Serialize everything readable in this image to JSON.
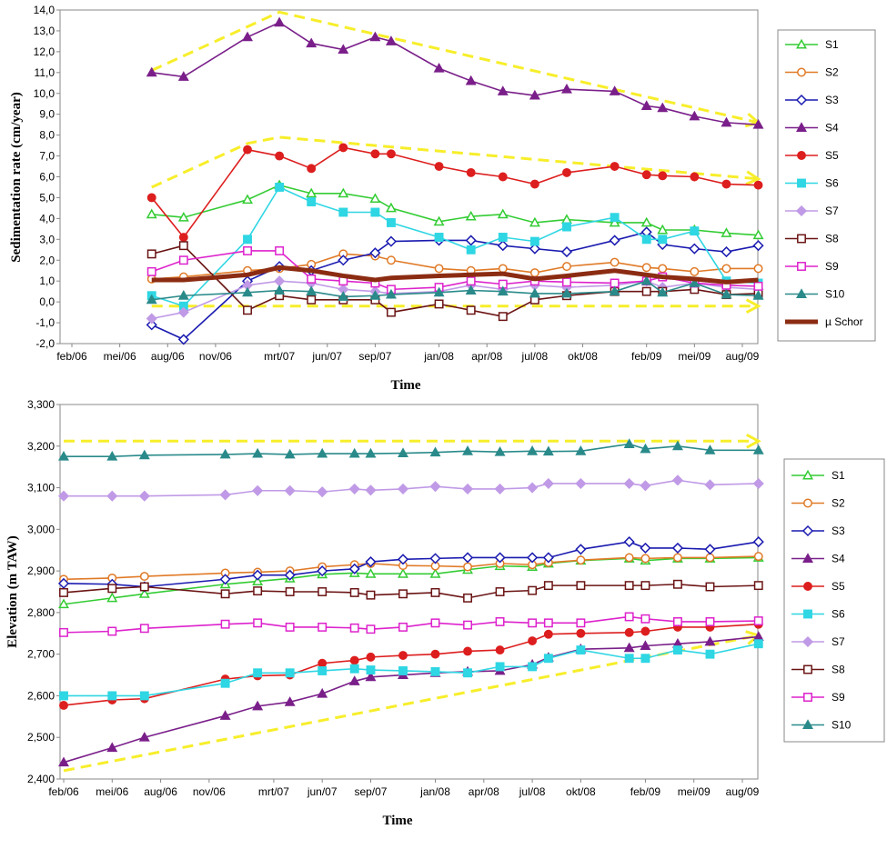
{
  "chart_data": [
    {
      "type": "line",
      "title": "",
      "xlabel": "Time",
      "ylabel": "Sedimentation rate (cm/year)",
      "xticks": [
        "feb/06",
        "mei/06",
        "aug/06",
        "nov/06",
        "mrt/07",
        "jun/07",
        "sep/07",
        "jan/08",
        "apr/08",
        "jul/08",
        "okt/08",
        "feb/09",
        "mei/09",
        "aug/09"
      ],
      "yticks": [
        "-2,0",
        "-1,0",
        "0,0",
        "1,0",
        "2,0",
        "3,0",
        "4,0",
        "5,0",
        "6,0",
        "7,0",
        "8,0",
        "9,0",
        "10,0",
        "11,0",
        "12,0",
        "13,0",
        "14,0"
      ],
      "ylim": [
        -2,
        14
      ],
      "grid": "none",
      "legend_position": "right",
      "x": [
        "jul/06",
        "sep/06",
        "jan/07",
        "mrt/07",
        "mei/07",
        "jul/07",
        "sep/07",
        "okt/07",
        "jan/08",
        "mrt/08",
        "mei/08",
        "jul/08",
        "sep/08",
        "dec/08",
        "feb/09",
        "mrt/09",
        "mei/09",
        "jul/09",
        "sep/09"
      ],
      "series": [
        {
          "name": "S1",
          "color": "#33cc33",
          "marker": "triangle-open",
          "values": [
            4.2,
            4.05,
            4.9,
            5.6,
            5.2,
            5.2,
            4.95,
            4.5,
            3.85,
            4.1,
            4.2,
            3.8,
            3.95,
            3.8,
            3.8,
            3.45,
            3.45,
            3.3,
            3.2
          ]
        },
        {
          "name": "S2",
          "color": "#e07a27",
          "marker": "circle-open",
          "values": [
            1.1,
            1.2,
            1.5,
            1.6,
            1.8,
            2.3,
            2.2,
            2.0,
            1.6,
            1.5,
            1.6,
            1.4,
            1.7,
            1.9,
            1.65,
            1.6,
            1.45,
            1.6,
            1.6
          ]
        },
        {
          "name": "S3",
          "color": "#1a1ab0",
          "marker": "diamond-open",
          "values": [
            -1.1,
            -1.8,
            1.0,
            1.7,
            1.5,
            2.0,
            2.35,
            2.9,
            2.95,
            2.95,
            2.7,
            2.55,
            2.4,
            2.95,
            3.35,
            2.75,
            2.55,
            2.4,
            2.7
          ]
        },
        {
          "name": "S4",
          "color": "#7a1f8a",
          "marker": "triangle-filled",
          "values": [
            11.0,
            10.8,
            12.7,
            13.4,
            12.4,
            12.1,
            12.7,
            12.5,
            11.2,
            10.6,
            10.1,
            9.9,
            10.2,
            10.1,
            9.4,
            9.3,
            8.9,
            8.6,
            8.5
          ]
        },
        {
          "name": "S5",
          "color": "#dd1e1e",
          "marker": "circle-filled",
          "values": [
            5.0,
            3.1,
            7.3,
            7.0,
            6.4,
            7.4,
            7.1,
            7.1,
            6.5,
            6.2,
            6.0,
            5.65,
            6.2,
            6.5,
            6.1,
            6.05,
            6.0,
            5.65,
            5.6
          ]
        },
        {
          "name": "S6",
          "color": "#2fd6e3",
          "marker": "square-filled",
          "values": [
            0.3,
            -0.2,
            3.0,
            5.5,
            4.8,
            4.3,
            4.3,
            3.8,
            3.1,
            2.5,
            3.1,
            2.9,
            3.6,
            4.05,
            3.0,
            3.0,
            3.4,
            1.0,
            0.9
          ]
        },
        {
          "name": "S7",
          "color": "#c09ae6",
          "marker": "diamond-filled",
          "values": [
            -0.8,
            -0.5,
            0.8,
            1.0,
            0.9,
            0.6,
            0.5,
            0.4,
            0.5,
            0.8,
            0.6,
            0.8,
            0.7,
            0.8,
            1.0,
            0.7,
            0.9,
            0.7,
            0.6
          ]
        },
        {
          "name": "S8",
          "color": "#6b1414",
          "marker": "square-open",
          "values": [
            2.3,
            2.7,
            -0.4,
            0.3,
            0.1,
            0.1,
            0.1,
            -0.5,
            -0.1,
            -0.4,
            -0.7,
            0.1,
            0.3,
            0.5,
            0.5,
            0.5,
            0.6,
            0.35,
            0.4
          ]
        },
        {
          "name": "S9",
          "color": "#dd22cc",
          "marker": "square-open",
          "values": [
            1.45,
            2.0,
            2.45,
            2.45,
            1.1,
            1.0,
            0.9,
            0.6,
            0.7,
            1.0,
            0.85,
            1.0,
            0.95,
            0.9,
            1.0,
            1.2,
            0.9,
            0.8,
            0.75
          ]
        },
        {
          "name": "S10",
          "color": "#2a8a8a",
          "marker": "triangle-filled",
          "values": [
            0.1,
            0.3,
            0.45,
            0.55,
            0.5,
            0.25,
            0.3,
            0.35,
            0.45,
            0.55,
            0.5,
            0.4,
            0.4,
            0.5,
            1.0,
            0.45,
            0.9,
            0.35,
            0.3
          ]
        },
        {
          "name": "µ Schor",
          "color": "#8b2c12",
          "marker": "none",
          "thick": true,
          "values": [
            1.05,
            1.05,
            1.3,
            1.65,
            1.5,
            1.25,
            1.05,
            1.15,
            1.25,
            1.3,
            1.35,
            1.1,
            1.25,
            1.5,
            1.3,
            1.2,
            1.1,
            0.95,
            1.05
          ]
        }
      ],
      "annotations": [
        {
          "color": "#f7ee2a",
          "points": [
            [
              "jul/06",
              11.1
            ],
            [
              "mrt/07",
              13.9
            ],
            [
              "sep/09",
              8.6
            ]
          ]
        },
        {
          "color": "#f7ee2a",
          "points": [
            [
              "jul/06",
              5.5
            ],
            [
              "jan/07",
              7.6
            ],
            [
              "mrt/07",
              7.9
            ],
            [
              "sep/09",
              5.9
            ]
          ]
        },
        {
          "color": "#f7ee2a",
          "points": [
            [
              "jul/06",
              -0.2
            ],
            [
              "sep/09",
              -0.2
            ]
          ]
        }
      ]
    },
    {
      "type": "line",
      "title": "",
      "xlabel": "Time",
      "ylabel": "Elevation (m TAW)",
      "xticks": [
        "feb/06",
        "mei/06",
        "aug/06",
        "nov/06",
        "mrt/07",
        "jun/07",
        "sep/07",
        "jan/08",
        "apr/08",
        "jul/08",
        "okt/08",
        "feb/09",
        "mei/09",
        "aug/09"
      ],
      "yticks": [
        "2,400",
        "2,500",
        "2,600",
        "2,700",
        "2,800",
        "2,900",
        "3,000",
        "3,100",
        "3,200",
        "3,300"
      ],
      "ylim": [
        2.4,
        3.3
      ],
      "grid": "none",
      "legend_position": "right",
      "x": [
        "feb/06",
        "mei/06",
        "jul/06",
        "dec/06",
        "feb/07",
        "apr/07",
        "jun/07",
        "aug/07",
        "sep/07",
        "nov/07",
        "jan/08",
        "mrt/08",
        "mei/08",
        "jul/08",
        "aug/08",
        "okt/08",
        "jan/09",
        "feb/09",
        "apr/09",
        "jun/09",
        "sep/09"
      ],
      "series": [
        {
          "name": "S1",
          "color": "#33cc33",
          "marker": "triangle-open",
          "values": [
            2.82,
            2.835,
            2.845,
            2.868,
            2.875,
            2.882,
            2.892,
            2.895,
            2.893,
            2.893,
            2.893,
            2.903,
            2.912,
            2.91,
            2.918,
            2.925,
            2.93,
            2.925,
            2.93,
            2.93,
            2.932
          ]
        },
        {
          "name": "S2",
          "color": "#e07a27",
          "marker": "circle-open",
          "values": [
            2.88,
            2.883,
            2.887,
            2.895,
            2.897,
            2.9,
            2.91,
            2.915,
            2.918,
            2.913,
            2.912,
            2.91,
            2.918,
            2.915,
            2.92,
            2.926,
            2.932,
            2.93,
            2.932,
            2.932,
            2.935
          ]
        },
        {
          "name": "S3",
          "color": "#1a1ab0",
          "marker": "diamond-open",
          "values": [
            2.87,
            2.868,
            2.862,
            2.88,
            2.89,
            2.89,
            2.9,
            2.905,
            2.922,
            2.928,
            2.93,
            2.932,
            2.932,
            2.932,
            2.932,
            2.952,
            2.97,
            2.955,
            2.955,
            2.952,
            2.97
          ]
        },
        {
          "name": "S4",
          "color": "#7a1f8a",
          "marker": "triangle-filled",
          "values": [
            2.44,
            2.475,
            2.5,
            2.552,
            2.575,
            2.585,
            2.605,
            2.635,
            2.645,
            2.65,
            2.655,
            2.658,
            2.66,
            2.675,
            2.692,
            2.712,
            2.715,
            2.72,
            2.725,
            2.73,
            2.742
          ]
        },
        {
          "name": "S5",
          "color": "#dd1e1e",
          "marker": "circle-filled",
          "values": [
            2.577,
            2.59,
            2.593,
            2.64,
            2.648,
            2.65,
            2.678,
            2.685,
            2.693,
            2.697,
            2.7,
            2.707,
            2.71,
            2.732,
            2.748,
            2.75,
            2.752,
            2.755,
            2.765,
            2.765,
            2.772
          ]
        },
        {
          "name": "S6",
          "color": "#2fd6e3",
          "marker": "square-filled",
          "values": [
            2.6,
            2.6,
            2.6,
            2.63,
            2.655,
            2.655,
            2.66,
            2.665,
            2.662,
            2.66,
            2.658,
            2.655,
            2.67,
            2.67,
            2.69,
            2.71,
            2.69,
            2.69,
            2.71,
            2.7,
            2.725
          ]
        },
        {
          "name": "S7",
          "color": "#c09ae6",
          "marker": "diamond-filled",
          "values": [
            3.08,
            3.08,
            3.08,
            3.083,
            3.093,
            3.093,
            3.09,
            3.097,
            3.094,
            3.097,
            3.103,
            3.097,
            3.097,
            3.1,
            3.11,
            3.11,
            3.11,
            3.105,
            3.118,
            3.107,
            3.11
          ]
        },
        {
          "name": "S8",
          "color": "#6b1414",
          "marker": "square-open",
          "values": [
            2.848,
            2.858,
            2.862,
            2.845,
            2.852,
            2.85,
            2.85,
            2.848,
            2.842,
            2.845,
            2.848,
            2.835,
            2.85,
            2.853,
            2.865,
            2.865,
            2.865,
            2.865,
            2.868,
            2.862,
            2.865
          ]
        },
        {
          "name": "S9",
          "color": "#dd22cc",
          "marker": "square-open",
          "values": [
            2.752,
            2.755,
            2.762,
            2.772,
            2.775,
            2.765,
            2.765,
            2.763,
            2.76,
            2.765,
            2.775,
            2.77,
            2.778,
            2.775,
            2.775,
            2.775,
            2.79,
            2.785,
            2.778,
            2.778,
            2.78
          ]
        },
        {
          "name": "S10",
          "color": "#2a8a8a",
          "marker": "triangle-filled",
          "values": [
            3.175,
            3.175,
            3.178,
            3.18,
            3.182,
            3.18,
            3.182,
            3.182,
            3.182,
            3.183,
            3.185,
            3.188,
            3.186,
            3.188,
            3.187,
            3.188,
            3.205,
            3.193,
            3.2,
            3.19,
            3.19
          ]
        }
      ],
      "annotations": [
        {
          "color": "#f7ee2a",
          "points": [
            [
              "feb/06",
              3.212
            ],
            [
              "sep/09",
              3.212
            ]
          ]
        },
        {
          "color": "#f7ee2a",
          "points": [
            [
              "feb/06",
              2.42
            ],
            [
              "sep/09",
              2.745
            ]
          ]
        }
      ]
    }
  ]
}
